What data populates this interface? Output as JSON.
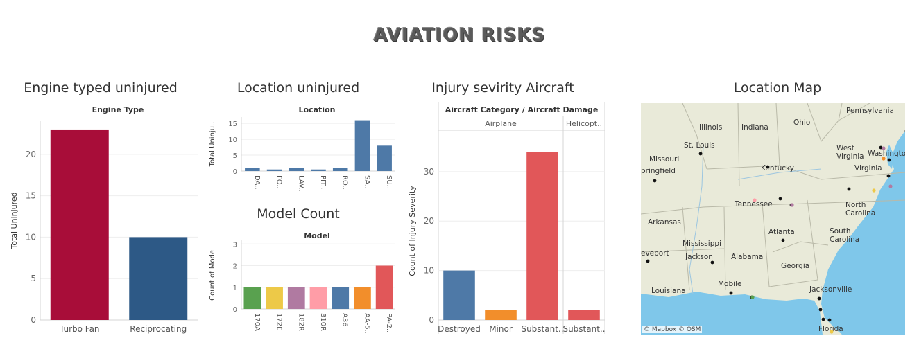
{
  "dashboard_title": "AVIATION RISKS",
  "panels": {
    "engine": "Engine typed uninjured",
    "location": "Location uninjured",
    "model": "Model Count",
    "injury": "Injury sevirity Aircraft",
    "map": "Location Map"
  },
  "chart_data": [
    {
      "id": "engine",
      "type": "bar",
      "header": "Engine Type",
      "ylabel": "Total Uninjured",
      "categories": [
        "Turbo Fan",
        "Reciprocating"
      ],
      "values": [
        23,
        10
      ],
      "colors": [
        "#a80d39",
        "#2d5986"
      ],
      "ylim": [
        0,
        24
      ],
      "yticks": [
        0,
        5,
        10,
        15,
        20
      ],
      "grid": true
    },
    {
      "id": "location",
      "type": "bar",
      "header": "Location",
      "ylabel": "Total Uninju..",
      "categories": [
        "DA..",
        "FO..",
        "LAV..",
        "PIT..",
        "RO..",
        "SA..",
        "SU.."
      ],
      "values": [
        1,
        0.5,
        1,
        0.5,
        1,
        16,
        8
      ],
      "colors": [
        "#4e79a7"
      ],
      "ylim": [
        0,
        17
      ],
      "yticks": [
        0,
        5,
        10,
        15
      ],
      "grid": true
    },
    {
      "id": "model",
      "type": "bar",
      "header": "Model",
      "ylabel": "Count of Model",
      "categories": [
        "170A",
        "172E",
        "182R",
        "310R",
        "A36",
        "AA-5..",
        "PA-2.."
      ],
      "values": [
        1,
        1,
        1,
        1,
        1,
        1,
        2
      ],
      "colors": [
        "#59a14f",
        "#edc948",
        "#b07aa1",
        "#ff9da7",
        "#4e79a7",
        "#f28e2b",
        "#e15759"
      ],
      "ylim": [
        0,
        3.2
      ],
      "yticks": [
        0,
        1,
        2,
        3
      ],
      "grid": true
    },
    {
      "id": "injury",
      "type": "bar",
      "header": "Aircraft Category / Aircraft Damage",
      "ylabel": "Count of Injury Severity",
      "groups": [
        {
          "name": "Airplane",
          "categories": [
            "Destroyed",
            "Minor",
            "Substant.."
          ],
          "values": [
            10,
            2,
            34
          ]
        },
        {
          "name": "Helicopt..",
          "categories": [
            "Substant.."
          ],
          "values": [
            2
          ]
        }
      ],
      "colors": [
        "#4e79a7",
        "#f28e2b",
        "#e15759"
      ],
      "ylim": [
        0,
        36
      ],
      "yticks": [
        0,
        10,
        20,
        30
      ],
      "grid": true
    }
  ],
  "map": {
    "credit": "© Mapbox  © OSM",
    "labels": [
      "Pennsylvania",
      "Illinois",
      "Indiana",
      "Ohio",
      "St. Louis",
      "West Virginia",
      "Washington",
      "Missouri",
      "Kentucky",
      "Virginia",
      "pringfield",
      "Tennessee",
      "North Carolina",
      "Arkansas",
      "Atlanta",
      "South Carolina",
      "Mississippi",
      "Jackson",
      "Alabama",
      "Georgia",
      "eveport",
      "Mobile",
      "Jacksonville",
      "Louisiana",
      "Florida"
    ],
    "land_color": "#e9ead9",
    "water_color": "#7fc7ea"
  }
}
